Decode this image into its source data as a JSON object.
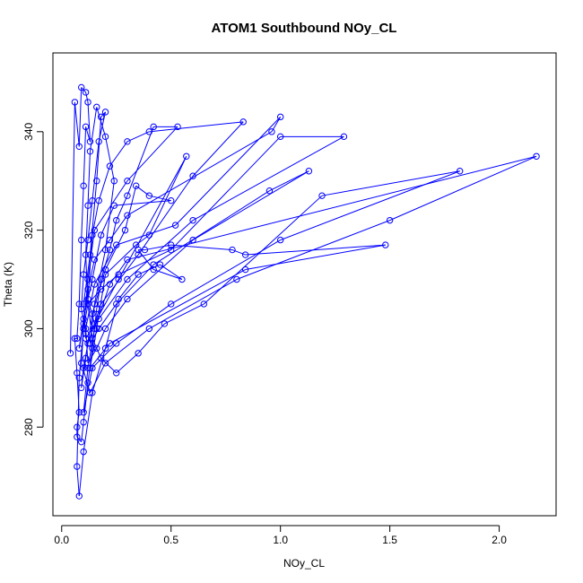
{
  "chart_data": {
    "type": "line",
    "title": "ATOM1 Southbound NOy_CL",
    "xlabel": "NOy_CL",
    "ylabel": "Theta (K)",
    "xlim": [
      -0.04,
      2.26
    ],
    "ylim": [
      262,
      356
    ],
    "xticks": [
      "0.0",
      "0.5",
      "1.0",
      "1.5",
      "2.0"
    ],
    "xtick_values": [
      0,
      0.5,
      1.0,
      1.5,
      2.0
    ],
    "yticks": [
      "280",
      "300",
      "320",
      "340"
    ],
    "ytick_values": [
      280,
      300,
      320,
      340
    ],
    "grid": false,
    "legend": "none",
    "marker": "open-circle",
    "color": "#0000ff",
    "series": [
      {
        "points": [
          [
            0.04,
            295
          ],
          [
            0.06,
            346
          ],
          [
            0.08,
            337
          ],
          [
            0.09,
            349
          ],
          [
            0.11,
            348
          ],
          [
            0.12,
            346
          ],
          [
            0.13,
            338
          ],
          [
            0.11,
            341
          ],
          [
            0.1,
            329
          ],
          [
            0.09,
            318
          ],
          [
            0.08,
            305
          ],
          [
            0.07,
            298
          ],
          [
            0.06,
            298
          ],
          [
            0.07,
            291
          ],
          [
            0.08,
            283
          ],
          [
            0.07,
            280
          ],
          [
            0.07,
            278
          ],
          [
            0.09,
            277
          ],
          [
            0.1,
            281
          ],
          [
            0.12,
            289
          ],
          [
            0.14,
            296
          ],
          [
            0.16,
            304
          ],
          [
            0.18,
            310
          ],
          [
            0.22,
            316
          ],
          [
            0.25,
            322
          ],
          [
            0.3,
            327
          ],
          [
            0.42,
            341
          ],
          [
            0.53,
            341
          ],
          [
            0.3,
            330
          ],
          [
            0.15,
            320
          ],
          [
            0.12,
            310
          ],
          [
            0.1,
            300
          ],
          [
            0.08,
            290
          ],
          [
            0.07,
            272
          ],
          [
            0.08,
            266
          ],
          [
            0.1,
            275
          ],
          [
            0.14,
            287
          ],
          [
            0.2,
            296
          ],
          [
            0.26,
            306
          ],
          [
            0.35,
            311
          ],
          [
            0.45,
            313
          ],
          [
            0.55,
            310
          ],
          [
            0.42,
            312
          ],
          [
            0.35,
            316
          ],
          [
            0.38,
            316
          ],
          [
            0.5,
            317
          ],
          [
            0.78,
            316
          ],
          [
            0.84,
            315
          ],
          [
            1.48,
            317
          ],
          [
            0.84,
            312
          ],
          [
            0.22,
            297
          ],
          [
            0.13,
            292
          ],
          [
            0.16,
            300
          ],
          [
            0.2,
            311
          ],
          [
            0.34,
            317
          ],
          [
            0.4,
            319
          ],
          [
            0.57,
            335
          ],
          [
            0.26,
            310
          ],
          [
            0.15,
            301
          ],
          [
            0.12,
            306
          ],
          [
            0.14,
            319
          ],
          [
            0.17,
            326
          ],
          [
            0.22,
            333
          ],
          [
            0.3,
            338
          ],
          [
            0.4,
            340
          ],
          [
            0.83,
            342
          ],
          [
            0.6,
            331
          ],
          [
            0.35,
            315
          ],
          [
            0.18,
            305
          ],
          [
            0.12,
            297
          ],
          [
            0.1,
            292
          ],
          [
            0.09,
            288
          ],
          [
            0.11,
            294
          ],
          [
            0.14,
            303
          ],
          [
            0.2,
            312
          ],
          [
            0.29,
            320
          ],
          [
            0.34,
            329
          ],
          [
            0.4,
            327
          ],
          [
            0.5,
            326
          ],
          [
            0.24,
            325
          ],
          [
            0.18,
            319
          ],
          [
            0.14,
            310
          ],
          [
            0.1,
            302
          ],
          [
            0.08,
            296
          ],
          [
            0.1,
            301
          ],
          [
            0.12,
            308
          ],
          [
            0.15,
            314
          ],
          [
            0.22,
            318
          ],
          [
            0.3,
            323
          ],
          [
            0.96,
            340
          ],
          [
            1.0,
            343
          ],
          [
            0.52,
            321
          ],
          [
            0.25,
            317
          ],
          [
            0.15,
            309
          ],
          [
            0.11,
            300
          ],
          [
            0.12,
            293
          ],
          [
            0.16,
            296
          ],
          [
            0.2,
            300
          ],
          [
            0.3,
            306
          ],
          [
            0.6,
            318
          ],
          [
            1.13,
            332
          ],
          [
            0.95,
            328
          ],
          [
            0.42,
            313
          ],
          [
            0.25,
            305
          ],
          [
            0.17,
            300
          ],
          [
            0.13,
            297
          ],
          [
            0.15,
            305
          ],
          [
            0.2,
            316
          ],
          [
            0.24,
            330
          ],
          [
            0.2,
            339
          ],
          [
            0.16,
            345
          ],
          [
            0.13,
            336
          ],
          [
            0.12,
            325
          ],
          [
            0.11,
            315
          ],
          [
            0.12,
            305
          ],
          [
            0.14,
            298
          ],
          [
            0.18,
            294
          ],
          [
            0.25,
            291
          ],
          [
            0.35,
            295
          ],
          [
            0.47,
            301
          ],
          [
            0.65,
            305
          ],
          [
            1.19,
            327
          ],
          [
            1.82,
            332
          ],
          [
            1.0,
            318
          ],
          [
            0.5,
            305
          ],
          [
            0.25,
            297
          ],
          [
            0.14,
            292
          ],
          [
            0.1,
            283
          ],
          [
            0.12,
            292
          ],
          [
            0.15,
            300
          ],
          [
            0.22,
            309
          ],
          [
            0.3,
            314
          ],
          [
            2.17,
            335
          ],
          [
            1.5,
            322
          ],
          [
            0.8,
            310
          ],
          [
            0.4,
            300
          ],
          [
            0.2,
            293
          ],
          [
            0.13,
            287
          ],
          [
            0.09,
            293
          ],
          [
            0.1,
            300
          ],
          [
            0.12,
            305
          ],
          [
            0.18,
            308
          ],
          [
            0.26,
            311
          ],
          [
            0.5,
            316
          ],
          [
            1.0,
            339
          ],
          [
            1.29,
            339
          ],
          [
            0.6,
            322
          ],
          [
            0.3,
            310
          ],
          [
            0.17,
            302
          ],
          [
            0.11,
            298
          ],
          [
            0.1,
            305
          ],
          [
            0.13,
            315
          ],
          [
            0.16,
            330
          ],
          [
            0.18,
            343
          ],
          [
            0.2,
            344
          ],
          [
            0.17,
            338
          ],
          [
            0.14,
            326
          ],
          [
            0.12,
            318
          ],
          [
            0.1,
            311
          ],
          [
            0.09,
            304
          ],
          [
            0.11,
            299
          ]
        ]
      }
    ]
  }
}
